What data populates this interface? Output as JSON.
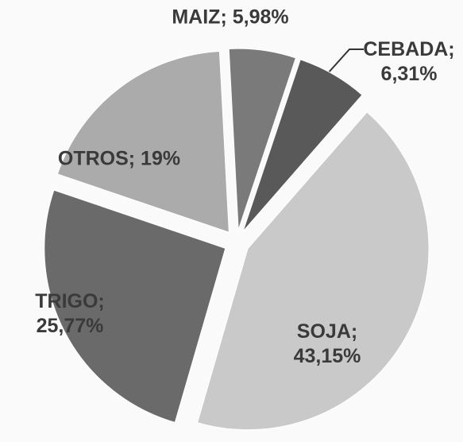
{
  "chart_data": {
    "type": "pie",
    "values": [
      5.98,
      6.31,
      43.15,
      25.77,
      19
    ],
    "value_labels": [
      "MAIZ; 5,98%",
      "CEBADA; 6,31%",
      "SOJA; 43,15%",
      "TRIGO; 25,77%",
      "OTROS; 19%"
    ],
    "colors": [
      "#7a7a7a",
      "#595959",
      "#c9c9c9",
      "#6a6a6a",
      "#ababab"
    ]
  }
}
